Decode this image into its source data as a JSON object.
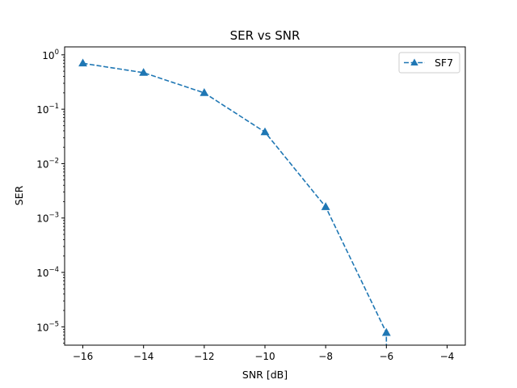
{
  "chart_data": {
    "type": "line",
    "title": "SER vs SNR",
    "xlabel": "SNR [dB]",
    "ylabel": "SER",
    "xlim": [
      -16.6,
      -3.4
    ],
    "ylim": [
      4.6e-06,
      1.4
    ],
    "yscale": "log",
    "xticks": [
      -16,
      -14,
      -12,
      -10,
      -8,
      -6,
      -4
    ],
    "xtick_labels": [
      "−16",
      "−14",
      "−12",
      "−10",
      "−8",
      "−6",
      "−4"
    ],
    "yticks": [
      {
        "value": 1,
        "base": "10",
        "exp": "0"
      },
      {
        "value": 0.1,
        "base": "10",
        "exp": "−1"
      },
      {
        "value": 0.01,
        "base": "10",
        "exp": "−2"
      },
      {
        "value": 0.001,
        "base": "10",
        "exp": "−3"
      },
      {
        "value": 0.0001,
        "base": "10",
        "exp": "−4"
      },
      {
        "value": 1e-05,
        "base": "10",
        "exp": "−5"
      }
    ],
    "grid": false,
    "legend_position": "top-right",
    "series": [
      {
        "name": "SF7",
        "color": "#1f77b4",
        "linestyle": "dashed",
        "marker": "triangle-up",
        "x": [
          -16,
          -14,
          -12,
          -10,
          -8,
          -6
        ],
        "y": [
          0.7,
          0.47,
          0.2,
          0.038,
          0.0016,
          7.8e-06
        ],
        "extends_below_axis": true
      }
    ]
  }
}
